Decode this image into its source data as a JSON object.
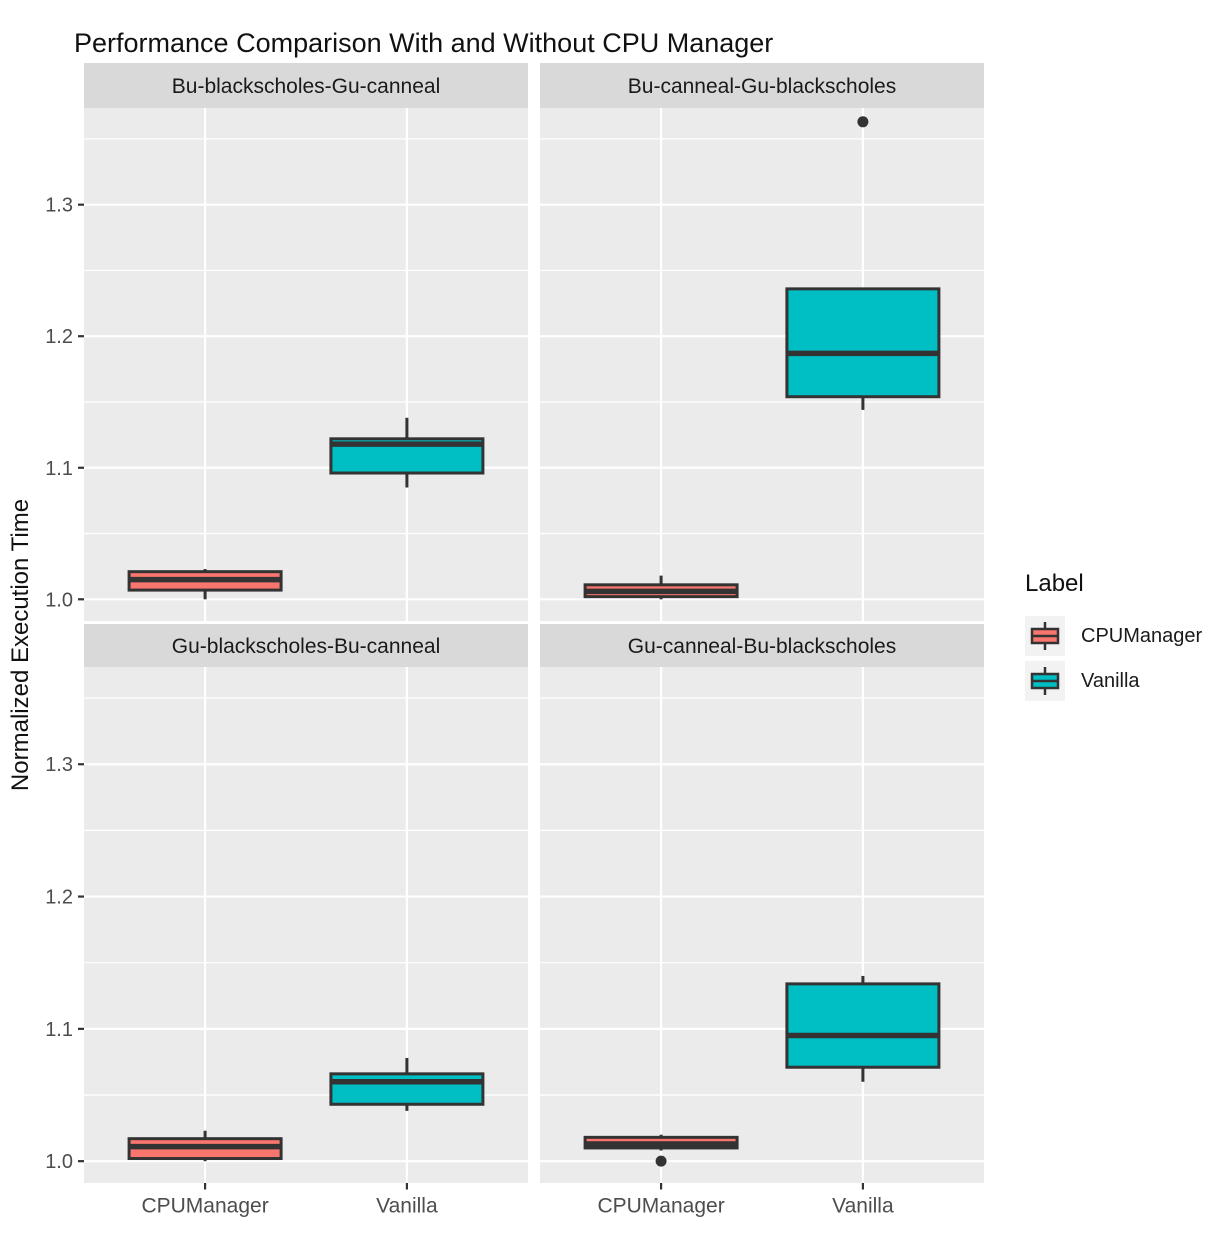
{
  "chart_data": {
    "type": "boxplot",
    "title": "Performance Comparison With and Without CPU Manager",
    "ylabel": "Normalized Execution Time",
    "xlabel": "",
    "x_categories": [
      "CPUManager",
      "Vanilla"
    ],
    "y_ticks": [
      1.0,
      1.1,
      1.2,
      1.3
    ],
    "y_tick_labels": [
      "1.0",
      "1.1",
      "1.2",
      "1.3"
    ],
    "y_minor_ticks": [
      1.05,
      1.15,
      1.25,
      1.35
    ],
    "ylim": [
      0.9835,
      1.3735
    ],
    "grid": "on",
    "legend_position": "right",
    "legend": {
      "title": "Label",
      "entries": [
        {
          "label": "CPUManager",
          "color": "#F8766D"
        },
        {
          "label": "Vanilla",
          "color": "#00BFC4"
        }
      ]
    },
    "facets": [
      {
        "title": "Bu-blackscholes-Gu-canneal",
        "series": [
          {
            "group": "CPUManager",
            "min": 1.0,
            "q1": 1.007,
            "median": 1.015,
            "q3": 1.021,
            "max": 1.023,
            "outliers": []
          },
          {
            "group": "Vanilla",
            "min": 1.085,
            "q1": 1.096,
            "median": 1.118,
            "q3": 1.122,
            "max": 1.138,
            "outliers": []
          }
        ]
      },
      {
        "title": "Bu-canneal-Gu-blackscholes",
        "series": [
          {
            "group": "CPUManager",
            "min": 1.0,
            "q1": 1.002,
            "median": 1.006,
            "q3": 1.011,
            "max": 1.018,
            "outliers": []
          },
          {
            "group": "Vanilla",
            "min": 1.144,
            "q1": 1.154,
            "median": 1.187,
            "q3": 1.236,
            "max": 1.236,
            "outliers": [
              1.363
            ]
          }
        ]
      },
      {
        "title": "Gu-blackscholes-Bu-canneal",
        "series": [
          {
            "group": "CPUManager",
            "min": 1.0,
            "q1": 1.002,
            "median": 1.011,
            "q3": 1.017,
            "max": 1.023,
            "outliers": []
          },
          {
            "group": "Vanilla",
            "min": 1.038,
            "q1": 1.043,
            "median": 1.06,
            "q3": 1.066,
            "max": 1.078,
            "outliers": []
          }
        ]
      },
      {
        "title": "Gu-canneal-Bu-blackscholes",
        "series": [
          {
            "group": "CPUManager",
            "min": 1.008,
            "q1": 1.01,
            "median": 1.013,
            "q3": 1.018,
            "max": 1.02,
            "outliers": [
              1.0
            ]
          },
          {
            "group": "Vanilla",
            "min": 1.06,
            "q1": 1.071,
            "median": 1.095,
            "q3": 1.134,
            "max": 1.14,
            "outliers": []
          }
        ]
      }
    ],
    "style": {
      "panel_bg": "#EBEBEB",
      "strip_bg": "#D9D9D9",
      "grid_color": "#FFFFFF",
      "box_outline": "#333333",
      "axis_text_color": "#4D4D4D",
      "strip_text_color": "#1A1A1A"
    }
  }
}
